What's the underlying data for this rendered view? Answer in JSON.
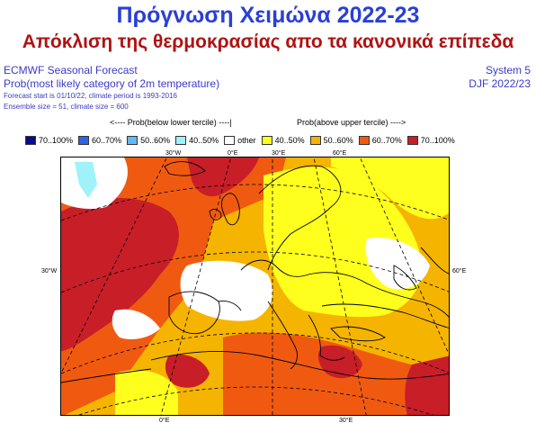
{
  "title": "Πρόγνωση Χειμώνα 2022-23",
  "subtitle": "Απόκλιση της θερμοκρασίας απο τα κανονικά επίπεδα",
  "header": {
    "left_line1": "ECMWF Seasonal Forecast",
    "left_line2": "Prob(most likely category of 2m temperature)",
    "left_line3": "Forecast start is 01/10/22, climate period is 1993-2016",
    "left_line4": "Ensemble size = 51, climate size = 600",
    "right_line1": "System 5",
    "right_line2": "DJF 2022/23"
  },
  "legend_caption": {
    "below": "<---- Prob(below lower tercile) ----|",
    "above": "Prob(above upper tercile) ---->"
  },
  "legend": [
    {
      "label": "70..100%",
      "color": "#0a0a8c"
    },
    {
      "label": "60..70%",
      "color": "#2f62e6"
    },
    {
      "label": "50..60%",
      "color": "#66b8f0"
    },
    {
      "label": "40..50%",
      "color": "#9ef2f8"
    },
    {
      "label": "other",
      "color": "#ffffff"
    },
    {
      "label": "40..50%",
      "color": "#ffff1e"
    },
    {
      "label": "50..60%",
      "color": "#f5b400"
    },
    {
      "label": "60..70%",
      "color": "#f05a10"
    },
    {
      "label": "70..100%",
      "color": "#c81e28"
    }
  ],
  "coords": {
    "top_30w": "30°W",
    "top_0e": "0°E",
    "top_30e": "30°E",
    "top_60e": "60°E",
    "left_30w": "30°W",
    "right_60e": "60°E",
    "bottom_0e": "0°E",
    "bottom_30e": "30°E"
  }
}
